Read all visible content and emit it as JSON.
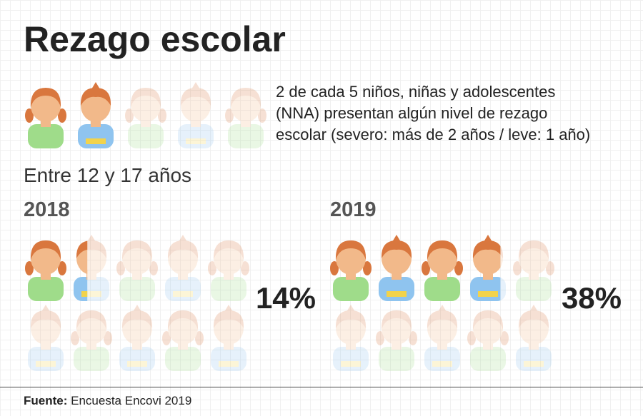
{
  "chart_data": {
    "type": "pictogram",
    "title": "Rezago escolar",
    "description": [
      "2 de cada 5 niños, niñas y adolescentes",
      "(NNA) presentan algún nivel de rezago",
      "escolar (severo: más de 2 años / leve: 1 año)"
    ],
    "subtitle": "Entre 12 y 17 años",
    "categories": [
      "2018",
      "2019"
    ],
    "values": [
      14,
      38
    ],
    "value_labels": [
      "14%",
      "38%"
    ],
    "source_label": "Fuente:",
    "source": "Encuesta Encovi 2019"
  }
}
